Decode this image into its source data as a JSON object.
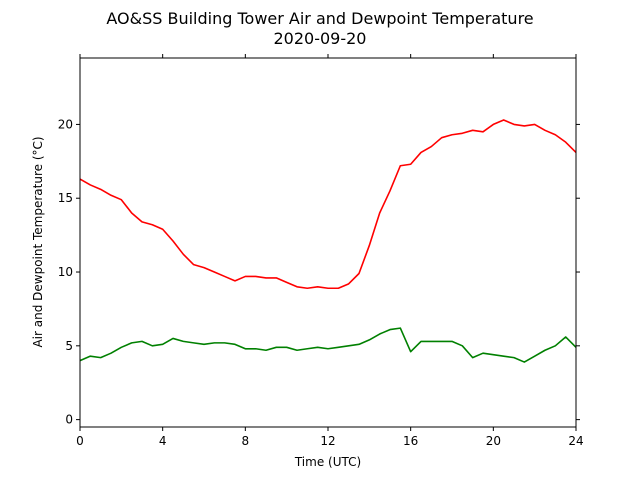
{
  "chart_data": {
    "type": "line",
    "title": "AO&SS Building Tower Air and Dewpoint Temperature",
    "subtitle": "2020-09-20",
    "xlabel": "Time (UTC)",
    "ylabel": "Air and Dewpoint Temperature (°C)",
    "xlim": [
      0,
      24
    ],
    "ylim": [
      -0.5,
      24.5
    ],
    "xticks": [
      0,
      4,
      8,
      12,
      16,
      20,
      24
    ],
    "yticks": [
      0,
      5,
      10,
      15,
      20
    ],
    "grid": false,
    "legend": "none",
    "series": [
      {
        "color": "#ff0000",
        "x": [
          0,
          0.5,
          1,
          1.5,
          2,
          2.5,
          3,
          3.5,
          4,
          4.5,
          5,
          5.5,
          6,
          6.5,
          7,
          7.5,
          8,
          8.5,
          9,
          9.5,
          10,
          10.5,
          11,
          11.5,
          12,
          12.5,
          13,
          13.5,
          14,
          14.5,
          15,
          15.5,
          16,
          16.5,
          17,
          17.5,
          18,
          18.5,
          19,
          19.5,
          20,
          20.5,
          21,
          21.5,
          22,
          22.5,
          23,
          23.5,
          24
        ],
        "y": [
          16.3,
          15.9,
          15.6,
          15.2,
          14.9,
          14.0,
          13.4,
          13.2,
          12.9,
          12.1,
          11.2,
          10.5,
          10.3,
          10.0,
          9.7,
          9.4,
          9.7,
          9.7,
          9.6,
          9.6,
          9.3,
          9.0,
          8.9,
          9.0,
          8.9,
          8.9,
          9.2,
          9.9,
          11.8,
          14.0,
          15.5,
          17.2,
          17.3,
          18.1,
          18.5,
          19.1,
          19.3,
          19.4,
          19.6,
          19.5,
          20.0,
          20.3,
          20.0,
          19.9,
          20.0,
          19.6,
          19.3,
          18.8,
          18.1
        ]
      },
      {
        "color": "#008000",
        "x": [
          0,
          0.5,
          1,
          1.5,
          2,
          2.5,
          3,
          3.5,
          4,
          4.5,
          5,
          5.5,
          6,
          6.5,
          7,
          7.5,
          8,
          8.5,
          9,
          9.5,
          10,
          10.5,
          11,
          11.5,
          12,
          12.5,
          13,
          13.5,
          14,
          14.5,
          15,
          15.5,
          16,
          16.5,
          17,
          17.5,
          18,
          18.5,
          19,
          19.5,
          20,
          20.5,
          21,
          21.5,
          22,
          22.5,
          23,
          23.5,
          24
        ],
        "y": [
          4.0,
          4.3,
          4.2,
          4.5,
          4.9,
          5.2,
          5.3,
          5.0,
          5.1,
          5.5,
          5.3,
          5.2,
          5.1,
          5.2,
          5.2,
          5.1,
          4.8,
          4.8,
          4.7,
          4.9,
          4.9,
          4.7,
          4.8,
          4.9,
          4.8,
          4.9,
          5.0,
          5.1,
          5.4,
          5.8,
          6.1,
          6.2,
          4.6,
          5.3,
          5.3,
          5.3,
          5.3,
          5.0,
          4.2,
          4.5,
          4.4,
          4.3,
          4.2,
          3.9,
          4.3,
          4.7,
          5.0,
          5.6,
          4.9
        ]
      }
    ]
  }
}
